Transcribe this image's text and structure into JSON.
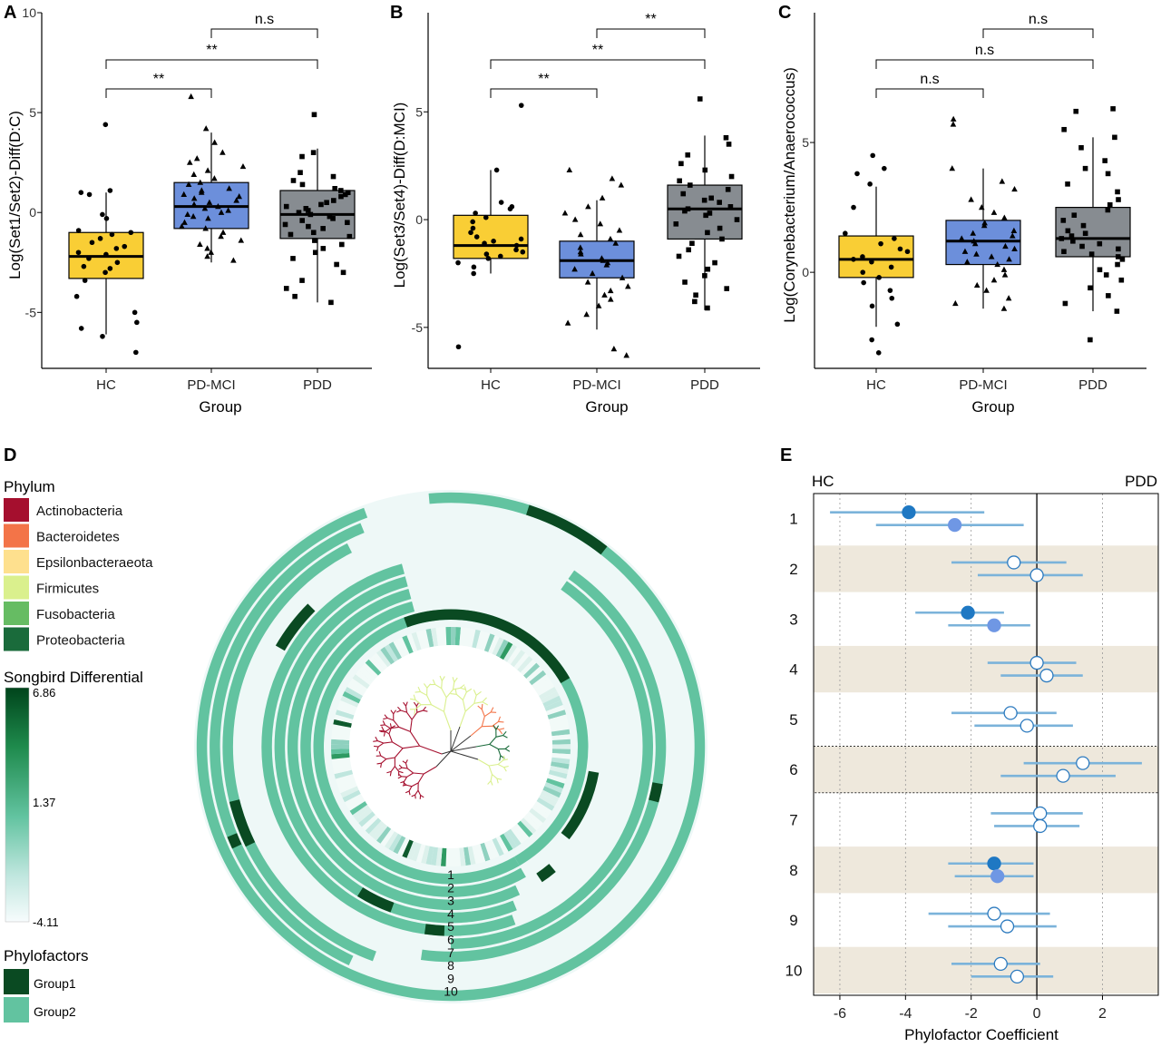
{
  "panel_letters": [
    "A",
    "B",
    "C",
    "D",
    "E"
  ],
  "colors": {
    "HC": "#F9CE35",
    "PD-MCI": "#6C8FDB",
    "PDD": "#878C91",
    "group1": "#0A4A22",
    "group2": "#62C3A0",
    "ring_bg": "#EEF8F7",
    "lane_fill": "#EEE8DC",
    "ci": "#7BB3DA",
    "dot_dark": "#1F78C3",
    "dot_light": "#6F97E4"
  },
  "chart_data": [
    {
      "type": "box",
      "panel": "A",
      "ylabel": "Log(Set1/Set2)-Diff(D:C)",
      "xlabel": "Group",
      "categories": [
        "HC",
        "PD-MCI",
        "PDD"
      ],
      "yticks": [
        -5,
        0,
        5,
        10
      ],
      "ylim": [
        -7.8,
        10
      ],
      "boxes": [
        {
          "group": "HC",
          "whisker_low": -6.1,
          "q1": -3.3,
          "median": -2.2,
          "q3": -1.0,
          "whisker_high": 1.0
        },
        {
          "group": "PD-MCI",
          "whisker_low": -2.5,
          "q1": -0.8,
          "median": 0.3,
          "q3": 1.5,
          "whisker_high": 4.0
        },
        {
          "group": "PDD",
          "whisker_low": -4.5,
          "q1": -1.3,
          "median": -0.1,
          "q3": 1.1,
          "whisker_high": 3.2
        }
      ],
      "points": [
        {
          "group": "HC",
          "marker": "circle",
          "values": [
            4.4,
            1.1,
            1.0,
            0.9,
            -0.1,
            -0.3,
            -0.9,
            -1.0,
            -1.1,
            -1.3,
            -1.5,
            -1.7,
            -1.8,
            -2.0,
            -2.1,
            -2.3,
            -2.5,
            -2.7,
            -2.8,
            -3.0,
            -3.4,
            -4.2,
            -5.0,
            -5.5,
            -5.8,
            -6.2,
            -7.0
          ]
        },
        {
          "group": "PD-MCI",
          "marker": "triangle",
          "values": [
            5.8,
            4.2,
            3.5,
            3.0,
            2.7,
            2.5,
            2.3,
            2.1,
            1.9,
            1.7,
            1.5,
            1.4,
            1.2,
            1.1,
            1.0,
            0.9,
            0.8,
            0.7,
            0.6,
            0.5,
            0.4,
            0.3,
            0.2,
            0.1,
            0.0,
            -0.1,
            -0.2,
            -0.3,
            -0.5,
            -0.7,
            -0.8,
            -1.0,
            -1.2,
            -1.4,
            -1.6,
            -1.8,
            -2.0,
            -2.2,
            -2.4
          ]
        },
        {
          "group": "PDD",
          "marker": "square",
          "values": [
            4.9,
            3.0,
            2.8,
            2.0,
            1.8,
            1.6,
            1.4,
            1.2,
            1.1,
            1.0,
            0.9,
            0.8,
            0.6,
            0.5,
            0.4,
            0.3,
            0.2,
            0.1,
            0.0,
            -0.1,
            -0.2,
            -0.3,
            -0.4,
            -0.5,
            -0.6,
            -0.7,
            -0.8,
            -1.0,
            -1.1,
            -1.2,
            -1.4,
            -1.6,
            -1.8,
            -2.0,
            -2.3,
            -2.6,
            -3.0,
            -3.4,
            -3.8,
            -4.2,
            -4.5
          ]
        }
      ],
      "comparisons": [
        {
          "from": "HC",
          "to": "PD-MCI",
          "label": "**",
          "level": 1
        },
        {
          "from": "HC",
          "to": "PDD",
          "label": "**",
          "level": 2
        },
        {
          "from": "PD-MCI",
          "to": "PDD",
          "label": "n.s",
          "level": 3
        }
      ]
    },
    {
      "type": "box",
      "panel": "B",
      "ylabel": "Log(Set3/Set4)-Diff(D:MCI)",
      "xlabel": "Group",
      "categories": [
        "HC",
        "PD-MCI",
        "PDD"
      ],
      "yticks": [
        -5,
        0,
        5
      ],
      "ylim": [
        -6.9,
        9.6
      ],
      "boxes": [
        {
          "group": "HC",
          "whisker_low": -2.5,
          "q1": -1.8,
          "median": -1.2,
          "q3": 0.2,
          "whisker_high": 2.3
        },
        {
          "group": "PD-MCI",
          "whisker_low": -5.1,
          "q1": -2.7,
          "median": -1.9,
          "q3": -1.0,
          "whisker_high": 0.9
        },
        {
          "group": "PDD",
          "whisker_low": -4.2,
          "q1": -0.9,
          "median": 0.5,
          "q3": 1.6,
          "whisker_high": 3.9
        }
      ],
      "points": [
        {
          "group": "HC",
          "marker": "circle",
          "values": [
            5.3,
            2.3,
            0.8,
            0.6,
            0.5,
            0.3,
            0.1,
            -0.1,
            -0.4,
            -0.6,
            -0.8,
            -0.9,
            -1.0,
            -1.1,
            -1.2,
            -1.4,
            -1.5,
            -1.6,
            -1.7,
            -1.8,
            -2.0,
            -2.2,
            -2.5,
            -5.9
          ]
        },
        {
          "group": "PD-MCI",
          "marker": "triangle",
          "values": [
            2.3,
            1.9,
            1.6,
            1.0,
            0.6,
            0.3,
            0.0,
            -0.2,
            -0.5,
            -0.7,
            -0.9,
            -1.1,
            -1.3,
            -1.5,
            -1.6,
            -1.8,
            -1.9,
            -2.0,
            -2.1,
            -2.3,
            -2.5,
            -2.7,
            -2.9,
            -3.1,
            -3.3,
            -3.5,
            -3.7,
            -4.0,
            -4.4,
            -4.8,
            -6.0,
            -6.3
          ]
        },
        {
          "group": "PDD",
          "marker": "square",
          "values": [
            5.6,
            3.8,
            3.5,
            3.0,
            2.6,
            2.3,
            2.0,
            1.8,
            1.6,
            1.4,
            1.2,
            1.0,
            0.9,
            0.8,
            0.6,
            0.5,
            0.4,
            0.3,
            0.2,
            0.0,
            -0.2,
            -0.4,
            -0.6,
            -0.9,
            -1.1,
            -1.4,
            -1.7,
            -2.0,
            -2.3,
            -2.6,
            -2.9,
            -3.2,
            -3.5,
            -3.8,
            -4.1
          ]
        }
      ],
      "comparisons": [
        {
          "from": "HC",
          "to": "PD-MCI",
          "label": "**",
          "level": 1
        },
        {
          "from": "HC",
          "to": "PDD",
          "label": "**",
          "level": 2
        },
        {
          "from": "PD-MCI",
          "to": "PDD",
          "label": "**",
          "level": 3
        }
      ]
    },
    {
      "type": "box",
      "panel": "C",
      "ylabel": "Log(Corynebacterium/Anaerococcus)",
      "xlabel": "Group",
      "categories": [
        "HC",
        "PD-MCI",
        "PDD"
      ],
      "yticks": [
        0,
        5
      ],
      "ylim": [
        -3.7,
        10.0
      ],
      "boxes": [
        {
          "group": "HC",
          "whisker_low": -2.1,
          "q1": -0.2,
          "median": 0.5,
          "q3": 1.4,
          "whisker_high": 3.3
        },
        {
          "group": "PD-MCI",
          "whisker_low": -1.4,
          "q1": 0.3,
          "median": 1.2,
          "q3": 2.0,
          "whisker_high": 4.0
        },
        {
          "group": "PDD",
          "whisker_low": -1.5,
          "q1": 0.6,
          "median": 1.3,
          "q3": 2.5,
          "whisker_high": 5.2
        }
      ],
      "points": [
        {
          "group": "HC",
          "marker": "circle",
          "values": [
            4.5,
            4.0,
            3.8,
            3.4,
            2.5,
            1.5,
            1.3,
            1.1,
            0.9,
            0.8,
            0.6,
            0.5,
            0.4,
            0.2,
            0.0,
            -0.2,
            -0.4,
            -0.7,
            -1.0,
            -1.3,
            -2.0,
            -2.6,
            -3.1
          ]
        },
        {
          "group": "PD-MCI",
          "marker": "triangle",
          "values": [
            5.9,
            5.7,
            4.0,
            3.5,
            3.2,
            2.8,
            2.5,
            2.3,
            2.1,
            1.9,
            1.8,
            1.6,
            1.5,
            1.4,
            1.3,
            1.2,
            1.1,
            1.0,
            0.9,
            0.8,
            0.7,
            0.6,
            0.5,
            0.4,
            0.3,
            0.1,
            -0.1,
            -0.3,
            -0.5,
            -0.7,
            -1.0,
            -1.2,
            -1.4
          ]
        },
        {
          "group": "PDD",
          "marker": "square",
          "values": [
            6.3,
            6.2,
            5.5,
            5.2,
            4.8,
            4.3,
            4.0,
            3.8,
            3.4,
            3.1,
            2.8,
            2.6,
            2.4,
            2.2,
            2.0,
            1.8,
            1.6,
            1.5,
            1.4,
            1.3,
            1.2,
            1.1,
            1.0,
            0.9,
            0.8,
            0.7,
            0.6,
            0.5,
            0.3,
            0.1,
            -0.1,
            -0.3,
            -0.6,
            -0.9,
            -1.2,
            -1.5,
            -2.6
          ]
        }
      ],
      "comparisons": [
        {
          "from": "HC",
          "to": "PD-MCI",
          "label": "n.s",
          "level": 1
        },
        {
          "from": "HC",
          "to": "PDD",
          "label": "n.s",
          "level": 2
        },
        {
          "from": "PD-MCI",
          "to": "PDD",
          "label": "n.s",
          "level": 3
        }
      ]
    },
    {
      "type": "circular-tree",
      "panel": "D",
      "legend_phylum_title": "Phylum",
      "phyla": [
        {
          "name": "Actinobacteria",
          "color": "#A50F2E"
        },
        {
          "name": "Bacteroidetes",
          "color": "#F37448"
        },
        {
          "name": "Epsilonbacteraeota",
          "color": "#FEE08E"
        },
        {
          "name": "Firmicutes",
          "color": "#DAF08D"
        },
        {
          "name": "Fusobacteria",
          "color": "#66BC63"
        },
        {
          "name": "Proteobacteria",
          "color": "#1A6B3B"
        }
      ],
      "legend_gradient_title": "Songbird Differential",
      "gradient_ticks": [
        "6.86",
        "1.37",
        "-4.11"
      ],
      "legend_factor_title": "Phylofactors",
      "factor_groups": [
        "Group1",
        "Group2"
      ],
      "ring_labels": [
        "1",
        "2",
        "3",
        "4",
        "5",
        "6",
        "7",
        "8",
        "9",
        "10"
      ]
    },
    {
      "type": "forest",
      "panel": "E",
      "left_label": "HC",
      "right_label": "PDD",
      "xlabel": "Phylofactor Coefficient",
      "xticks": [
        -6,
        -4,
        -2,
        0,
        2
      ],
      "xlim": [
        -6.8,
        3.7
      ],
      "rows": [
        {
          "label": "1",
          "estimates": [
            {
              "value": -3.9,
              "lo": -6.3,
              "hi": -1.6,
              "style": "dark"
            },
            {
              "value": -2.5,
              "lo": -4.9,
              "hi": -0.4,
              "style": "light"
            }
          ]
        },
        {
          "label": "2",
          "estimates": [
            {
              "value": -0.7,
              "lo": -2.6,
              "hi": 0.9,
              "style": "open"
            },
            {
              "value": 0.0,
              "lo": -1.8,
              "hi": 1.4,
              "style": "open"
            }
          ]
        },
        {
          "label": "3",
          "estimates": [
            {
              "value": -2.1,
              "lo": -3.7,
              "hi": -1.0,
              "style": "dark"
            },
            {
              "value": -1.3,
              "lo": -2.7,
              "hi": -0.2,
              "style": "light"
            }
          ]
        },
        {
          "label": "4",
          "estimates": [
            {
              "value": 0.0,
              "lo": -1.5,
              "hi": 1.2,
              "style": "open"
            },
            {
              "value": 0.3,
              "lo": -1.1,
              "hi": 1.4,
              "style": "open"
            }
          ]
        },
        {
          "label": "5",
          "estimates": [
            {
              "value": -0.8,
              "lo": -2.6,
              "hi": 0.6,
              "style": "open"
            },
            {
              "value": -0.3,
              "lo": -1.9,
              "hi": 1.1,
              "style": "open"
            }
          ]
        },
        {
          "label": "6",
          "estimates": [
            {
              "value": 1.4,
              "lo": -0.4,
              "hi": 3.2,
              "style": "open"
            },
            {
              "value": 0.8,
              "lo": -1.1,
              "hi": 2.4,
              "style": "open"
            }
          ]
        },
        {
          "label": "7",
          "estimates": [
            {
              "value": 0.1,
              "lo": -1.4,
              "hi": 1.4,
              "style": "open"
            },
            {
              "value": 0.1,
              "lo": -1.3,
              "hi": 1.3,
              "style": "open"
            }
          ]
        },
        {
          "label": "8",
          "estimates": [
            {
              "value": -1.3,
              "lo": -2.7,
              "hi": -0.1,
              "style": "dark"
            },
            {
              "value": -1.2,
              "lo": -2.5,
              "hi": -0.1,
              "style": "light"
            }
          ]
        },
        {
          "label": "9",
          "estimates": [
            {
              "value": -1.3,
              "lo": -3.3,
              "hi": 0.4,
              "style": "open"
            },
            {
              "value": -0.9,
              "lo": -2.7,
              "hi": 0.6,
              "style": "open"
            }
          ]
        },
        {
          "label": "10",
          "estimates": [
            {
              "value": -1.1,
              "lo": -2.6,
              "hi": 0.1,
              "style": "open"
            },
            {
              "value": -0.6,
              "lo": -2.0,
              "hi": 0.5,
              "style": "open"
            }
          ]
        }
      ],
      "highlight_row": "6"
    }
  ]
}
